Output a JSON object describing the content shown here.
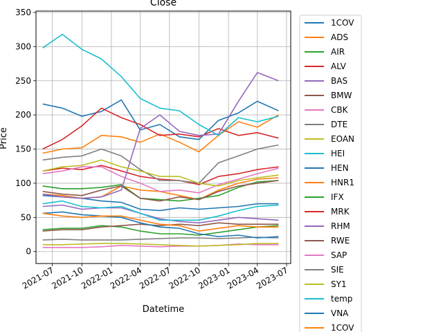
{
  "chart_data": {
    "type": "line",
    "title": "Close",
    "xlabel": "Datetime",
    "ylabel": "Price",
    "xlim": [
      "2021-05-11",
      "2023-07-14"
    ],
    "ylim": [
      -17.5,
      352
    ],
    "grid": true,
    "legend_position": "right",
    "x_ticks": [
      {
        "value": "2021-07-01",
        "label": "2021-07"
      },
      {
        "value": "2021-10-01",
        "label": "2021-10"
      },
      {
        "value": "2022-01-01",
        "label": "2022-01"
      },
      {
        "value": "2022-04-01",
        "label": "2022-04"
      },
      {
        "value": "2022-07-01",
        "label": "2022-07"
      },
      {
        "value": "2022-10-01",
        "label": "2022-10"
      },
      {
        "value": "2023-01-01",
        "label": "2023-01"
      },
      {
        "value": "2023-04-01",
        "label": "2023-04"
      },
      {
        "value": "2023-07-01",
        "label": "2023-07"
      }
    ],
    "y_ticks": [
      0,
      50,
      100,
      150,
      200,
      250,
      300,
      350
    ],
    "series": [
      {
        "name": "1COV",
        "color": "#1f77b4",
        "x": [
          "2021-06-01",
          "2021-08-01",
          "2021-10-01",
          "2021-12-01",
          "2022-02-01",
          "2022-04-01",
          "2022-06-01",
          "2022-08-01",
          "2022-10-01",
          "2022-12-01",
          "2023-02-01",
          "2023-04-01",
          "2023-06-06"
        ],
        "values": [
          216,
          210,
          198,
          205,
          222,
          178,
          186,
          168,
          164,
          192,
          203,
          220,
          206
        ]
      },
      {
        "name": "ADS",
        "color": "#ff7f0e",
        "x": [
          "2021-06-01",
          "2021-08-01",
          "2021-10-01",
          "2021-12-01",
          "2022-02-01",
          "2022-04-01",
          "2022-06-01",
          "2022-08-01",
          "2022-10-01",
          "2022-12-01",
          "2023-02-01",
          "2023-04-01",
          "2023-06-06"
        ],
        "values": [
          84,
          82,
          78,
          80,
          96,
          90,
          88,
          82,
          76,
          90,
          100,
          106,
          108
        ]
      },
      {
        "name": "AIR",
        "color": "#2ca02c",
        "x": [
          "2021-06-01",
          "2021-08-01",
          "2021-10-01",
          "2021-12-01",
          "2022-02-01",
          "2022-04-01",
          "2022-06-01",
          "2022-08-01",
          "2022-10-01",
          "2022-12-01",
          "2023-02-01",
          "2023-04-01",
          "2023-06-06"
        ],
        "values": [
          96,
          92,
          92,
          94,
          98,
          78,
          76,
          74,
          78,
          82,
          94,
          102,
          104
        ]
      },
      {
        "name": "ALV",
        "color": "#d62728",
        "x": [
          "2021-06-01",
          "2021-08-01",
          "2021-10-01",
          "2021-12-01",
          "2022-02-01",
          "2022-04-01",
          "2022-06-01",
          "2022-08-01",
          "2022-10-01",
          "2022-12-01",
          "2023-02-01",
          "2023-04-01",
          "2023-06-06"
        ],
        "values": [
          118,
          122,
          120,
          126,
          118,
          110,
          106,
          104,
          98,
          110,
          114,
          120,
          124
        ]
      },
      {
        "name": "BAS",
        "color": "#9467bd",
        "x": [
          "2021-06-01",
          "2021-08-01",
          "2021-10-01",
          "2021-12-01",
          "2022-02-01",
          "2022-04-01",
          "2022-06-01",
          "2022-08-01",
          "2022-10-01",
          "2022-12-01",
          "2023-02-01",
          "2023-04-01",
          "2023-06-06"
        ],
        "values": [
          66,
          68,
          62,
          64,
          64,
          56,
          48,
          44,
          42,
          46,
          50,
          48,
          46
        ]
      },
      {
        "name": "BMW",
        "color": "#8c564b",
        "x": [
          "2021-06-01",
          "2021-08-01",
          "2021-10-01",
          "2021-12-01",
          "2022-02-01",
          "2022-04-01",
          "2022-06-01",
          "2022-08-01",
          "2022-10-01",
          "2022-12-01",
          "2023-02-01",
          "2023-04-01",
          "2023-06-06"
        ],
        "values": [
          88,
          84,
          82,
          90,
          96,
          78,
          74,
          80,
          76,
          88,
          96,
          100,
          104
        ]
      },
      {
        "name": "CBK",
        "color": "#e377c2",
        "x": [
          "2021-06-01",
          "2021-08-01",
          "2021-10-01",
          "2021-12-01",
          "2022-02-01",
          "2022-04-01",
          "2022-06-01",
          "2022-08-01",
          "2022-10-01",
          "2022-12-01",
          "2023-02-01",
          "2023-04-01",
          "2023-06-06"
        ],
        "values": [
          6,
          6,
          6,
          7,
          9,
          8,
          7,
          8,
          8,
          9,
          11,
          10,
          10
        ]
      },
      {
        "name": "DTE",
        "color": "#7f7f7f",
        "x": [
          "2021-06-01",
          "2021-08-01",
          "2021-10-01",
          "2021-12-01",
          "2022-02-01",
          "2022-04-01",
          "2022-06-01",
          "2022-08-01",
          "2022-10-01",
          "2022-12-01",
          "2023-02-01",
          "2023-04-01",
          "2023-06-06"
        ],
        "values": [
          17,
          18,
          17,
          17,
          17,
          18,
          19,
          20,
          20,
          19,
          20,
          21,
          20
        ]
      },
      {
        "name": "EOAN",
        "color": "#bcbd22",
        "x": [
          "2021-06-01",
          "2021-08-01",
          "2021-10-01",
          "2021-12-01",
          "2022-02-01",
          "2022-04-01",
          "2022-06-01",
          "2022-08-01",
          "2022-10-01",
          "2022-12-01",
          "2023-02-01",
          "2023-04-01",
          "2023-06-06"
        ],
        "values": [
          10,
          10,
          11,
          12,
          12,
          11,
          10,
          9,
          8,
          9,
          10,
          12,
          12
        ]
      },
      {
        "name": "HEI",
        "color": "#17becf",
        "x": [
          "2021-06-01",
          "2021-08-01",
          "2021-10-01",
          "2021-12-01",
          "2022-02-01",
          "2022-04-01",
          "2022-06-01",
          "2022-08-01",
          "2022-10-01",
          "2022-12-01",
          "2023-02-01",
          "2023-04-01",
          "2023-06-06"
        ],
        "values": [
          70,
          74,
          66,
          64,
          66,
          56,
          46,
          46,
          46,
          52,
          60,
          66,
          68
        ]
      },
      {
        "name": "HEN",
        "color": "#1f77b4",
        "x": [
          "2021-06-01",
          "2021-08-01",
          "2021-10-01",
          "2021-12-01",
          "2022-02-01",
          "2022-04-01",
          "2022-06-01",
          "2022-08-01",
          "2022-10-01",
          "2022-12-01",
          "2023-02-01",
          "2023-04-01",
          "2023-06-06"
        ],
        "values": [
          82,
          80,
          78,
          74,
          72,
          62,
          60,
          64,
          62,
          64,
          66,
          70,
          70
        ]
      },
      {
        "name": "HNR1",
        "color": "#ff7f0e",
        "x": [
          "2021-06-01",
          "2021-08-01",
          "2021-10-01",
          "2021-12-01",
          "2022-02-01",
          "2022-04-01",
          "2022-06-01",
          "2022-08-01",
          "2022-10-01",
          "2022-12-01",
          "2023-02-01",
          "2023-04-01",
          "2023-06-06"
        ],
        "values": [
          144,
          150,
          152,
          170,
          168,
          160,
          172,
          160,
          146,
          170,
          190,
          182,
          200
        ]
      },
      {
        "name": "IFX",
        "color": "#2ca02c",
        "x": [
          "2021-06-01",
          "2021-08-01",
          "2021-10-01",
          "2021-12-01",
          "2022-02-01",
          "2022-04-01",
          "2022-06-01",
          "2022-08-01",
          "2022-10-01",
          "2022-12-01",
          "2023-02-01",
          "2023-04-01",
          "2023-06-06"
        ],
        "values": [
          32,
          34,
          34,
          38,
          36,
          30,
          26,
          26,
          24,
          28,
          32,
          36,
          38
        ]
      },
      {
        "name": "MRK",
        "color": "#d62728",
        "x": [
          "2021-06-01",
          "2021-08-01",
          "2021-10-01",
          "2021-12-01",
          "2022-02-01",
          "2022-04-01",
          "2022-06-01",
          "2022-08-01",
          "2022-10-01",
          "2022-12-01",
          "2023-02-01",
          "2023-04-01",
          "2023-06-06"
        ],
        "values": [
          150,
          164,
          184,
          210,
          196,
          186,
          170,
          172,
          168,
          180,
          170,
          174,
          166
        ]
      },
      {
        "name": "RHM",
        "color": "#9467bd",
        "x": [
          "2021-06-01",
          "2021-08-01",
          "2021-10-01",
          "2021-12-01",
          "2022-02-01",
          "2022-04-01",
          "2022-06-01",
          "2022-08-01",
          "2022-10-01",
          "2022-12-01",
          "2023-02-01",
          "2023-04-01",
          "2023-06-06"
        ],
        "values": [
          84,
          80,
          78,
          80,
          90,
          180,
          200,
          176,
          170,
          172,
          220,
          262,
          250
        ]
      },
      {
        "name": "RWE",
        "color": "#8c564b",
        "x": [
          "2021-06-01",
          "2021-08-01",
          "2021-10-01",
          "2021-12-01",
          "2022-02-01",
          "2022-04-01",
          "2022-06-01",
          "2022-08-01",
          "2022-10-01",
          "2022-12-01",
          "2023-02-01",
          "2023-04-01",
          "2023-06-06"
        ],
        "values": [
          30,
          32,
          32,
          36,
          38,
          40,
          38,
          40,
          38,
          42,
          40,
          40,
          40
        ]
      },
      {
        "name": "SAP",
        "color": "#e377c2",
        "x": [
          "2021-06-01",
          "2021-08-01",
          "2021-10-01",
          "2021-12-01",
          "2022-02-01",
          "2022-04-01",
          "2022-06-01",
          "2022-08-01",
          "2022-10-01",
          "2022-12-01",
          "2023-02-01",
          "2023-04-01",
          "2023-06-06"
        ],
        "values": [
          114,
          118,
          124,
          124,
          110,
          100,
          88,
          90,
          86,
          98,
          106,
          114,
          122
        ]
      },
      {
        "name": "SIE",
        "color": "#7f7f7f",
        "x": [
          "2021-06-01",
          "2021-08-01",
          "2021-10-01",
          "2021-12-01",
          "2022-02-01",
          "2022-04-01",
          "2022-06-01",
          "2022-08-01",
          "2022-10-01",
          "2022-12-01",
          "2023-02-01",
          "2023-04-01",
          "2023-06-06"
        ],
        "values": [
          134,
          138,
          140,
          150,
          140,
          120,
          104,
          104,
          100,
          130,
          140,
          150,
          156
        ]
      },
      {
        "name": "SY1",
        "color": "#bcbd22",
        "x": [
          "2021-06-01",
          "2021-08-01",
          "2021-10-01",
          "2021-12-01",
          "2022-02-01",
          "2022-04-01",
          "2022-06-01",
          "2022-08-01",
          "2022-10-01",
          "2022-12-01",
          "2023-02-01",
          "2023-04-01",
          "2023-06-06"
        ],
        "values": [
          118,
          124,
          126,
          134,
          124,
          118,
          110,
          110,
          100,
          96,
          104,
          108,
          112
        ]
      },
      {
        "name": "temp",
        "color": "#17becf",
        "x": [
          "2021-06-01",
          "2021-08-01",
          "2021-10-01",
          "2021-12-01",
          "2022-02-01",
          "2022-04-01",
          "2022-06-01",
          "2022-08-01",
          "2022-10-01",
          "2022-12-01",
          "2023-02-01",
          "2023-04-01",
          "2023-06-06"
        ],
        "values": [
          298,
          318,
          296,
          282,
          256,
          224,
          210,
          206,
          186,
          170,
          196,
          190,
          198
        ]
      },
      {
        "name": "VNA",
        "color": "#1f77b4",
        "x": [
          "2021-06-01",
          "2021-08-01",
          "2021-10-01",
          "2021-12-01",
          "2022-02-01",
          "2022-04-01",
          "2022-06-01",
          "2022-08-01",
          "2022-10-01",
          "2022-12-01",
          "2023-02-01",
          "2023-04-01",
          "2023-06-06"
        ],
        "values": [
          56,
          58,
          54,
          52,
          50,
          42,
          36,
          34,
          26,
          22,
          24,
          20,
          22
        ]
      },
      {
        "name": "1COV",
        "color": "#ff7f0e",
        "x": [
          "2021-06-01",
          "2021-08-01",
          "2021-10-01",
          "2021-12-01",
          "2022-02-01",
          "2022-04-01",
          "2022-06-01",
          "2022-08-01",
          "2022-10-01",
          "2022-12-01",
          "2023-02-01",
          "2023-04-01",
          "2023-06-06"
        ],
        "values": [
          56,
          52,
          50,
          52,
          52,
          46,
          40,
          38,
          30,
          34,
          38,
          36,
          36
        ]
      }
    ]
  }
}
